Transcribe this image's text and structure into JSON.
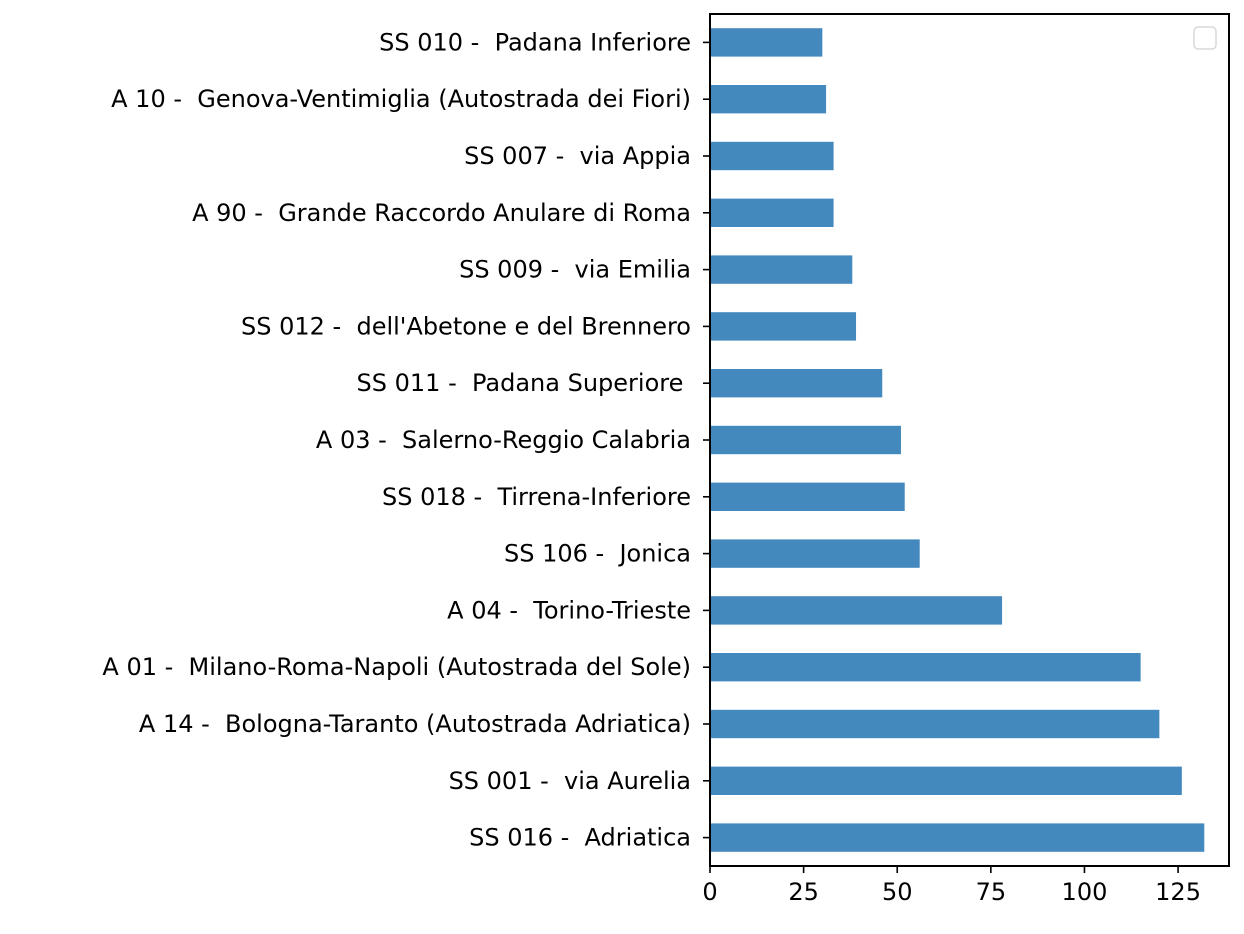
{
  "chart_data": {
    "type": "bar",
    "orientation": "horizontal",
    "title": "",
    "xlabel": "",
    "ylabel": "",
    "categories": [
      "SS 016 -  Adriatica",
      "SS 001 -  via Aurelia",
      "A 14 -  Bologna-Taranto (Autostrada Adriatica)",
      "A 01 -  Milano-Roma-Napoli (Autostrada del Sole)",
      "A 04 -  Torino-Trieste",
      "SS 106 -  Jonica",
      "SS 018 -  Tirrena-Inferiore",
      "A 03 -  Salerno-Reggio Calabria",
      "SS 011 -  Padana Superiore ",
      "SS 012 -  dell'Abetone e del Brennero",
      "SS 009 -  via Emilia",
      "A 90 -  Grande Raccordo Anulare di Roma",
      "SS 007 -  via Appia",
      "A 10 -  Genova-Ventimiglia (Autostrada dei Fiori)",
      "SS 010 -  Padana Inferiore"
    ],
    "values": [
      132,
      126,
      120,
      115,
      78,
      56,
      52,
      51,
      46,
      39,
      38,
      33,
      33,
      31,
      30
    ],
    "xlim": [
      0,
      138.6
    ],
    "xticks": [
      0,
      25,
      50,
      75,
      100,
      125
    ],
    "xtick_labels": [
      "0",
      "25",
      "50",
      "75",
      "100",
      "125"
    ],
    "grid": false,
    "legend": {
      "placement": "upper right",
      "entries": []
    },
    "colors": {
      "bar": "#4389bd",
      "axis": "#000000",
      "legend_border": "#d9d9d9"
    }
  }
}
